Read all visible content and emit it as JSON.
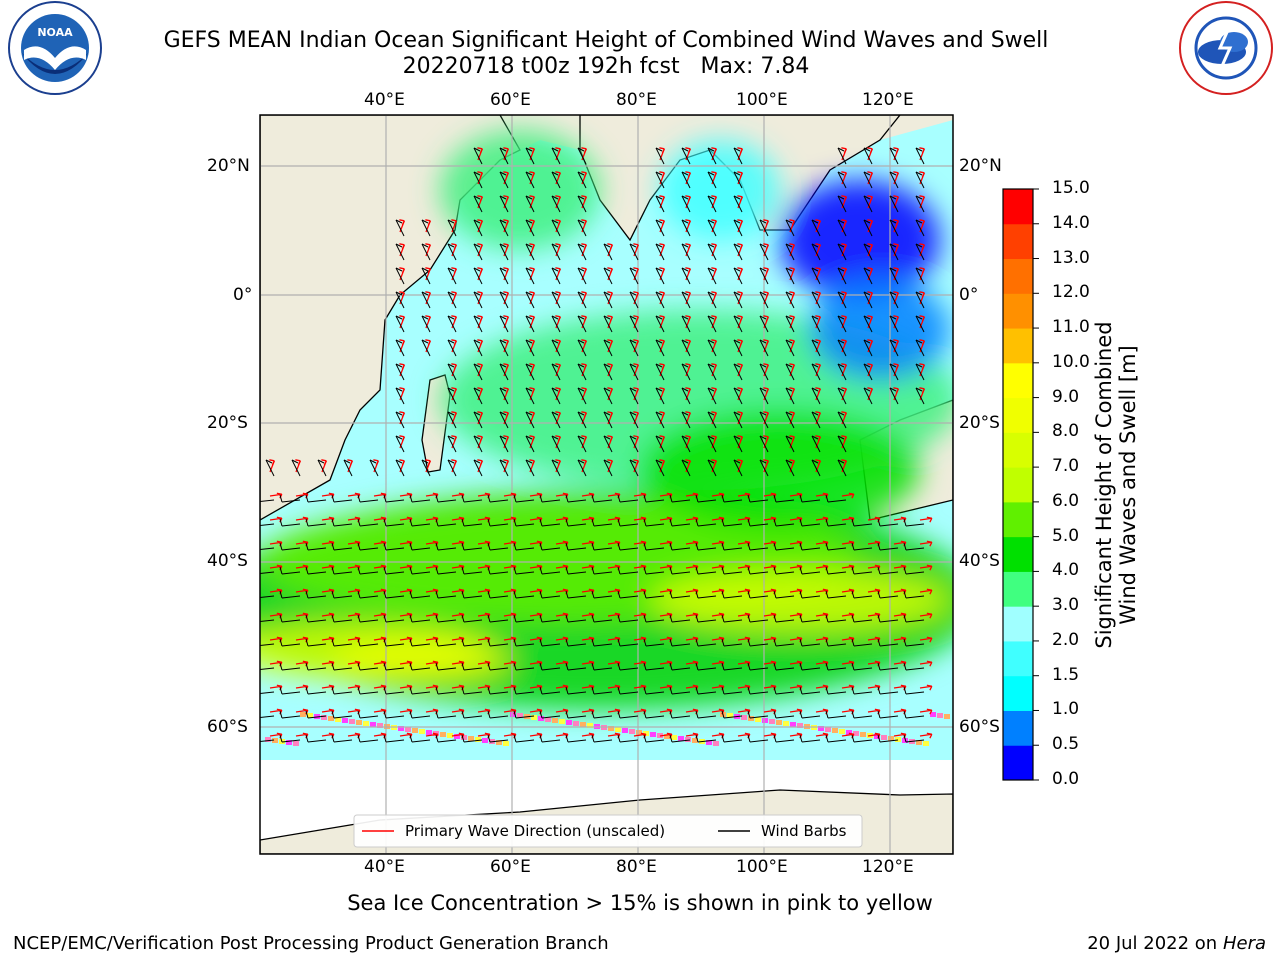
{
  "header": {
    "title_line1": "GEFS MEAN Indian Ocean Significant Height of Combined Wind Waves and Swell",
    "title_line2": "20220718 t00z 192h fcst   Max: 7.84"
  },
  "logos": {
    "left": "NOAA",
    "left_ring_text": "NATIONAL OCEANIC AND ATMOSPHERIC ADMINISTRATION",
    "left_bottom_text": "U.S. DEPARTMENT OF COMMERCE",
    "right_ring_text": "NATIONAL WEATHER SERVICE"
  },
  "map": {
    "lon_labels": [
      "40°E",
      "60°E",
      "80°E",
      "100°E",
      "120°E"
    ],
    "lat_labels": [
      "20°N",
      "0°",
      "20°S",
      "40°S",
      "60°S"
    ],
    "legend": {
      "wave": "Primary Wave Direction (unscaled)",
      "wind": "Wind Barbs"
    },
    "colors": {
      "land": "#efecdc",
      "wave_arrow": "#ff0000",
      "wind_barb": "#000000"
    }
  },
  "colorbar": {
    "label_line1": "Significant Height of Combined",
    "label_line2": "Wind Waves and Swell [m]",
    "ticks": [
      "0.0",
      "0.5",
      "1.0",
      "1.5",
      "2.0",
      "3.0",
      "4.0",
      "5.0",
      "6.0",
      "7.0",
      "8.0",
      "9.0",
      "10.0",
      "11.0",
      "12.0",
      "13.0",
      "14.0",
      "15.0"
    ],
    "colors": [
      "#0000ff",
      "#0080ff",
      "#00ffff",
      "#40ffff",
      "#a0ffff",
      "#40ff80",
      "#00e000",
      "#60f000",
      "#c0ff00",
      "#d8ff00",
      "#f0ff00",
      "#ffff00",
      "#ffc000",
      "#ff9000",
      "#ff7000",
      "#ff4000",
      "#ff0000"
    ]
  },
  "footer": {
    "note": "Sea Ice Concentration > 15% is shown in pink to yellow",
    "left": "NCEP/EMC/Verification Post Processing Product Generation Branch",
    "right_date": "20 Jul 2022 on ",
    "right_machine": "Hera"
  }
}
